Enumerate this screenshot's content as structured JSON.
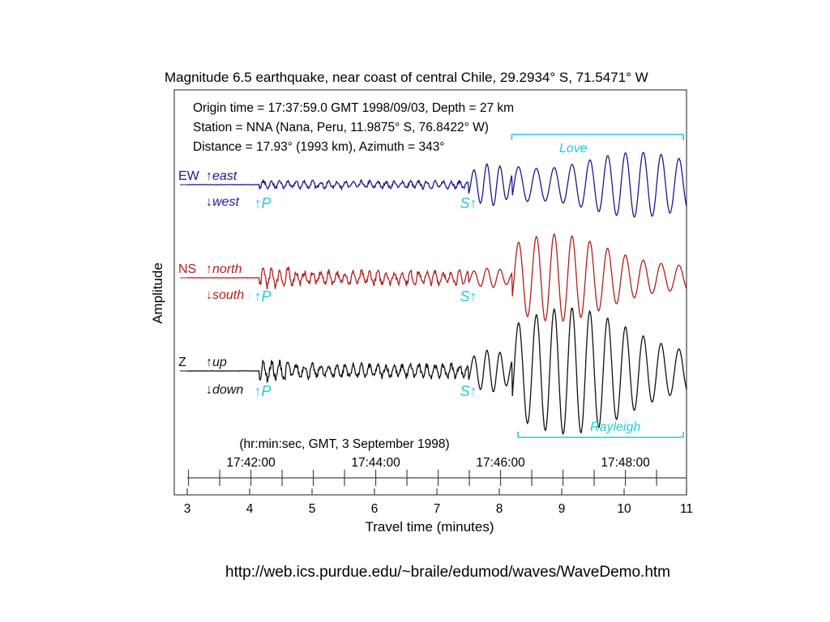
{
  "slide": {
    "source_url": "http://web.ics.purdue.edu/~braile/edumod/waves/WaveDemo.htm"
  },
  "colors": {
    "ew": "#1a1a8c",
    "ns": "#b0201c",
    "z": "#111111",
    "accent": "#22cbd6"
  },
  "chart_data": {
    "type": "line",
    "title": "Magnitude 6.5 earthquake, near coast of central Chile, 29.2934° S, 71.5471° W",
    "info_lines": [
      "Origin time = 17:37:59.0 GMT 1998/09/03, Depth = 27 km",
      "Station = NNA (Nana, Peru, 11.9875° S, 76.8422° W)",
      "Distance = 17.93° (1993 km), Azimuth = 343°"
    ],
    "xlabel": "Travel time (minutes)",
    "ylabel": "Amplitude",
    "xlim": [
      3,
      11
    ],
    "x_ticks": [
      "3",
      "4",
      "5",
      "6",
      "7",
      "8",
      "9",
      "10",
      "11"
    ],
    "top_axis": {
      "caption": "(hr:min:sec, GMT, 3 September 1998)",
      "labels": [
        "17:42:00",
        "17:44:00",
        "17:46:00",
        "17:48:00"
      ],
      "label_positions": [
        4.02,
        6.02,
        8.02,
        10.02
      ]
    },
    "series": [
      {
        "name": "EW",
        "up_label": "east",
        "down_label": "west"
      },
      {
        "name": "NS",
        "up_label": "north",
        "down_label": "south"
      },
      {
        "name": "Z",
        "up_label": "up",
        "down_label": "down"
      }
    ],
    "phases": {
      "P": {
        "label": "P",
        "time": 4.15
      },
      "S": {
        "label": "S",
        "time": 7.5
      }
    },
    "wave_bands": [
      {
        "label": "Love",
        "x_start": 8.2,
        "x_end": 10.95,
        "position": "top"
      },
      {
        "label": "Rayleigh",
        "x_start": 8.3,
        "x_end": 10.95,
        "position": "bottom"
      }
    ],
    "arrows": {
      "up": "↑",
      "down": "↓"
    }
  }
}
